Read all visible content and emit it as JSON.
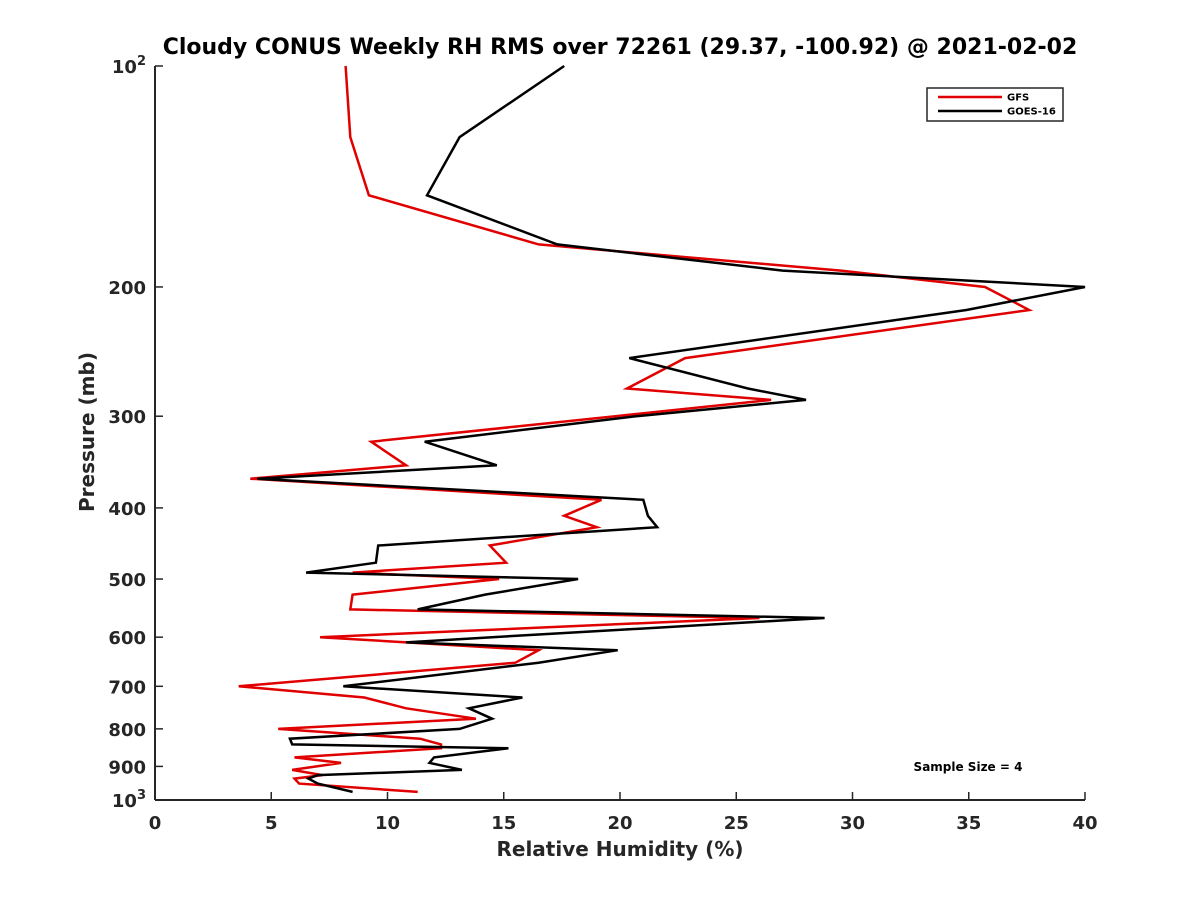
{
  "chart_data": {
    "type": "line",
    "title": "Cloudy CONUS Weekly RH RMS over 72261 (29.37, -100.92) @ 2021-02-02",
    "xlabel": "Relative Humidity (%)",
    "ylabel": "Pressure (mb)",
    "xlim": [
      0,
      40
    ],
    "ylim": [
      100,
      1000
    ],
    "y_scale": "log",
    "y_reversed": true,
    "grid": false,
    "legend_position": "top-right",
    "x_ticks": [
      "0",
      "5",
      "10",
      "15",
      "20",
      "25",
      "30",
      "35",
      "40"
    ],
    "y_ticks": [
      {
        "value": 100,
        "base": "10",
        "exp": "2"
      },
      {
        "value": 200,
        "label": "200"
      },
      {
        "value": 300,
        "label": "300"
      },
      {
        "value": 400,
        "label": "400"
      },
      {
        "value": 500,
        "label": "500"
      },
      {
        "value": 600,
        "label": "600"
      },
      {
        "value": 700,
        "label": "700"
      },
      {
        "value": 800,
        "label": "800"
      },
      {
        "value": 900,
        "label": "900"
      },
      {
        "value": 1000,
        "base": "10",
        "exp": "3"
      }
    ],
    "series": [
      {
        "name": "GFS",
        "color": "#e00000",
        "points": [
          [
            8.2,
            100
          ],
          [
            8.4,
            125
          ],
          [
            9.2,
            150
          ],
          [
            16.5,
            175
          ],
          [
            29.5,
            190
          ],
          [
            35.7,
            200
          ],
          [
            37.6,
            215
          ],
          [
            22.8,
            250
          ],
          [
            20.3,
            275
          ],
          [
            26.5,
            285
          ],
          [
            19.8,
            300
          ],
          [
            9.3,
            325
          ],
          [
            10.8,
            350
          ],
          [
            4.1,
            365
          ],
          [
            19.2,
            390
          ],
          [
            17.6,
            410
          ],
          [
            19.0,
            425
          ],
          [
            14.4,
            450
          ],
          [
            15.1,
            475
          ],
          [
            8.5,
            490
          ],
          [
            14.8,
            500
          ],
          [
            8.5,
            525
          ],
          [
            8.4,
            550
          ],
          [
            26.0,
            565
          ],
          [
            7.1,
            600
          ],
          [
            16.5,
            625
          ],
          [
            15.5,
            650
          ],
          [
            3.6,
            700
          ],
          [
            9.0,
            725
          ],
          [
            10.8,
            750
          ],
          [
            13.8,
            775
          ],
          [
            5.3,
            800
          ],
          [
            11.4,
            825
          ],
          [
            12.3,
            840
          ],
          [
            12.3,
            850
          ],
          [
            6.0,
            875
          ],
          [
            8.0,
            890
          ],
          [
            5.9,
            910
          ],
          [
            7.2,
            925
          ],
          [
            6.0,
            935
          ],
          [
            6.2,
            950
          ],
          [
            11.3,
            975
          ]
        ]
      },
      {
        "name": "GOES-16",
        "color": "#000000",
        "points": [
          [
            17.6,
            100
          ],
          [
            13.1,
            125
          ],
          [
            11.7,
            150
          ],
          [
            17.3,
            175
          ],
          [
            27.0,
            190
          ],
          [
            40.0,
            200
          ],
          [
            34.9,
            215
          ],
          [
            20.4,
            250
          ],
          [
            25.5,
            275
          ],
          [
            28.0,
            285
          ],
          [
            20.7,
            300
          ],
          [
            11.6,
            325
          ],
          [
            14.7,
            350
          ],
          [
            4.4,
            365
          ],
          [
            21.0,
            390
          ],
          [
            21.2,
            410
          ],
          [
            21.6,
            425
          ],
          [
            9.6,
            450
          ],
          [
            9.5,
            475
          ],
          [
            6.5,
            490
          ],
          [
            18.2,
            500
          ],
          [
            14.2,
            525
          ],
          [
            11.3,
            550
          ],
          [
            28.8,
            565
          ],
          [
            14.5,
            600
          ],
          [
            10.8,
            610
          ],
          [
            19.9,
            625
          ],
          [
            16.5,
            650
          ],
          [
            8.1,
            700
          ],
          [
            15.8,
            725
          ],
          [
            13.5,
            750
          ],
          [
            14.5,
            775
          ],
          [
            13.1,
            800
          ],
          [
            5.8,
            825
          ],
          [
            5.9,
            840
          ],
          [
            15.2,
            850
          ],
          [
            12.0,
            875
          ],
          [
            11.8,
            890
          ],
          [
            13.2,
            910
          ],
          [
            7.0,
            925
          ],
          [
            6.6,
            935
          ],
          [
            7.0,
            950
          ],
          [
            8.5,
            975
          ]
        ]
      }
    ],
    "annotation": "Sample Size = 4"
  }
}
